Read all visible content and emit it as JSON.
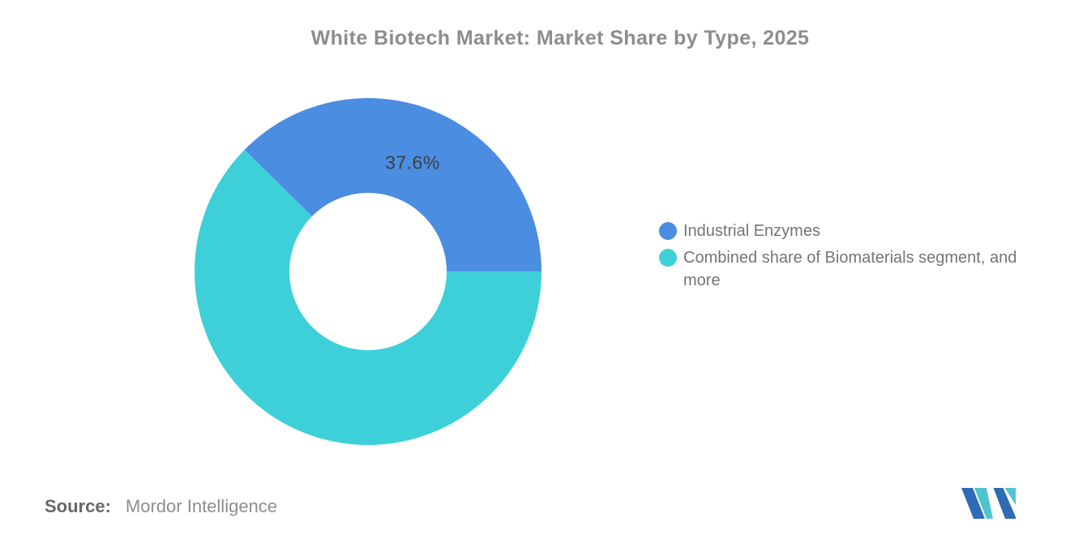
{
  "title": "White Biotech Market: Market Share by Type, 2025",
  "chart_data": {
    "type": "pie",
    "subtype": "donut",
    "title": "White Biotech Market: Market Share by Type, 2025",
    "rotation_deg": -45.4,
    "inner_radius_ratio": 0.4533,
    "outer_radius_px": 214,
    "legend_position": "right",
    "data_label_color": "#3f3f3f",
    "slices": [
      {
        "name": "Industrial Enzymes",
        "value": 37.6,
        "color": "#4A8DE1",
        "label": "37.6%"
      },
      {
        "name": "Combined share of Biomaterials segment, and more",
        "value": 62.4,
        "color": "#3DD0D9",
        "label": ""
      }
    ]
  },
  "legend": {
    "items": [
      {
        "label": "Industrial Enzymes",
        "color": "#4A8DE1"
      },
      {
        "label": "Combined share of Biomaterials segment, and more",
        "color": "#3DD0D9"
      }
    ]
  },
  "source": {
    "prefix": "Source:",
    "text": "Mordor Intelligence"
  },
  "logo": {
    "name": "mordor-intelligence-logo",
    "blue": "#2E6CB5",
    "teal": "#4FC5CE"
  }
}
